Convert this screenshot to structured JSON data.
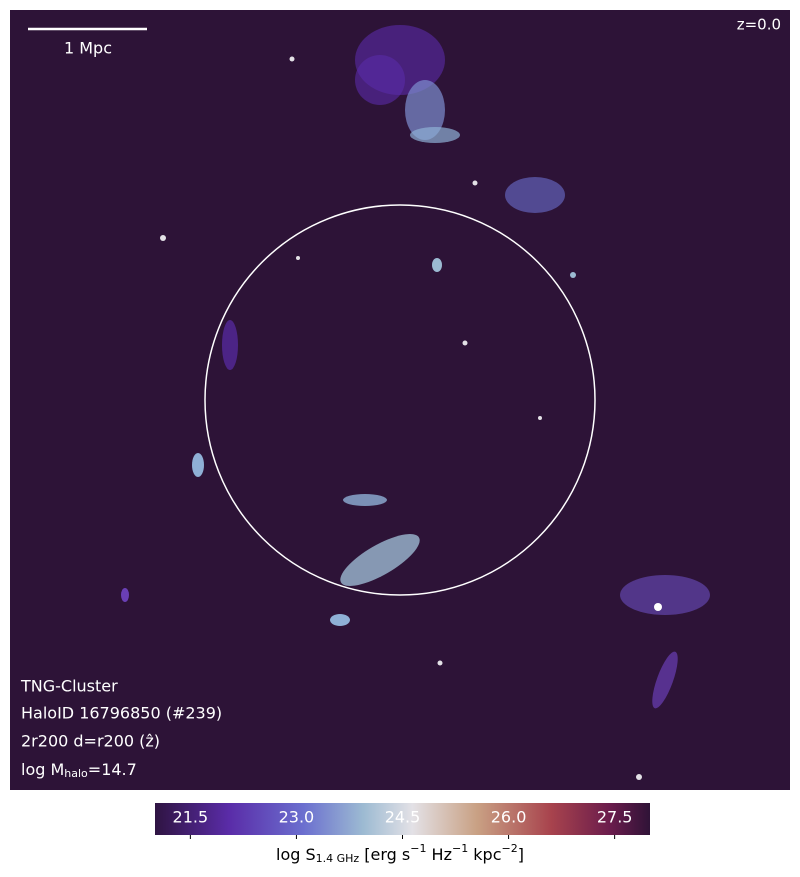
{
  "scale_bar": {
    "label": "1 Mpc"
  },
  "redshift": "z=0.0",
  "annotations": [
    "TNG-Cluster",
    "HaloID 16796850 (#239)",
    "2r200 d=r200 (ẑ)"
  ],
  "mass_label": [
    "log M",
    "halo",
    "=14.7"
  ],
  "colorbar": {
    "label": [
      "log S",
      "1.4 GHz",
      " [erg s",
      "−1",
      " Hz",
      "−1",
      " kpc",
      "−2",
      "]"
    ],
    "lim": [
      21,
      28
    ],
    "ticks": [
      21.5,
      {
        "value": 23,
        "label": "23.0"
      },
      24.5,
      {
        "value": 26,
        "label": "26.0"
      },
      27.5
    ]
  }
}
